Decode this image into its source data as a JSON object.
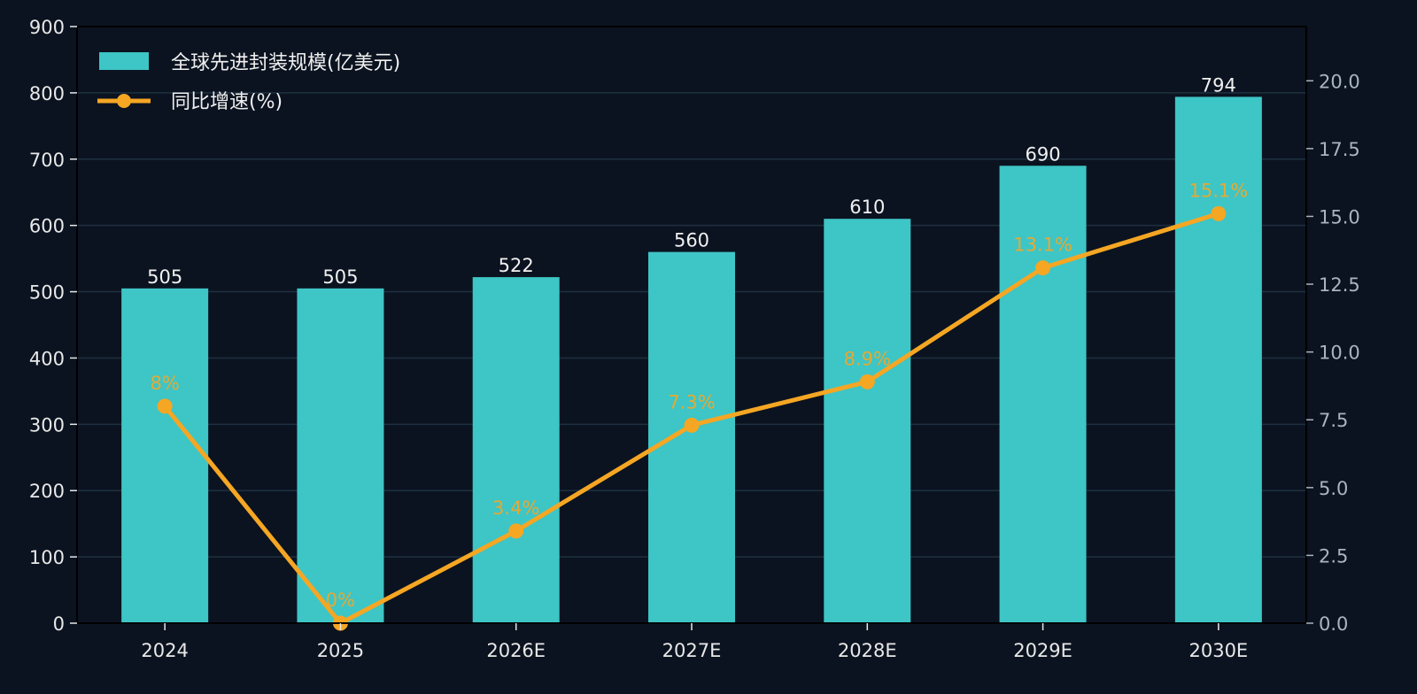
{
  "colors": {
    "background": "#0b1320",
    "bar": "#3ec5c6",
    "line": "#f5a623",
    "grid": "#1e3040",
    "left_tick": "#e8e8e8",
    "right_tick": "#aab4c0",
    "x_tick": "#e8e8e8",
    "bar_label": "#f0f0f0"
  },
  "chart_data": {
    "type": "bar",
    "categories": [
      "2024",
      "2025",
      "2026E",
      "2027E",
      "2028E",
      "2029E",
      "2030E"
    ],
    "series": [
      {
        "name": "全球先进封装规模(亿美元)",
        "type": "bar",
        "axis": "left",
        "values": [
          505,
          505,
          522,
          560,
          610,
          690,
          794
        ],
        "labels": [
          "505",
          "505",
          "522",
          "560",
          "610",
          "690",
          "794"
        ]
      },
      {
        "name": "同比增速(%)",
        "type": "line",
        "axis": "right",
        "values": [
          8.0,
          0.0,
          3.4,
          7.3,
          8.9,
          13.1,
          15.1
        ],
        "labels": [
          "8%",
          "0%",
          "3.4%",
          "7.3%",
          "8.9%",
          "13.1%",
          "15.1%"
        ]
      }
    ],
    "ylim_left": [
      0,
      900
    ],
    "yticks_left": [
      "0",
      "100",
      "200",
      "300",
      "400",
      "500",
      "600",
      "700",
      "800",
      "900"
    ],
    "ylim_right": [
      0,
      22
    ],
    "yticks_right": [
      "0.0",
      "2.5",
      "5.0",
      "7.5",
      "10.0",
      "12.5",
      "15.0",
      "17.5",
      "20.0"
    ],
    "grid": true,
    "legend_position": "top-left"
  }
}
